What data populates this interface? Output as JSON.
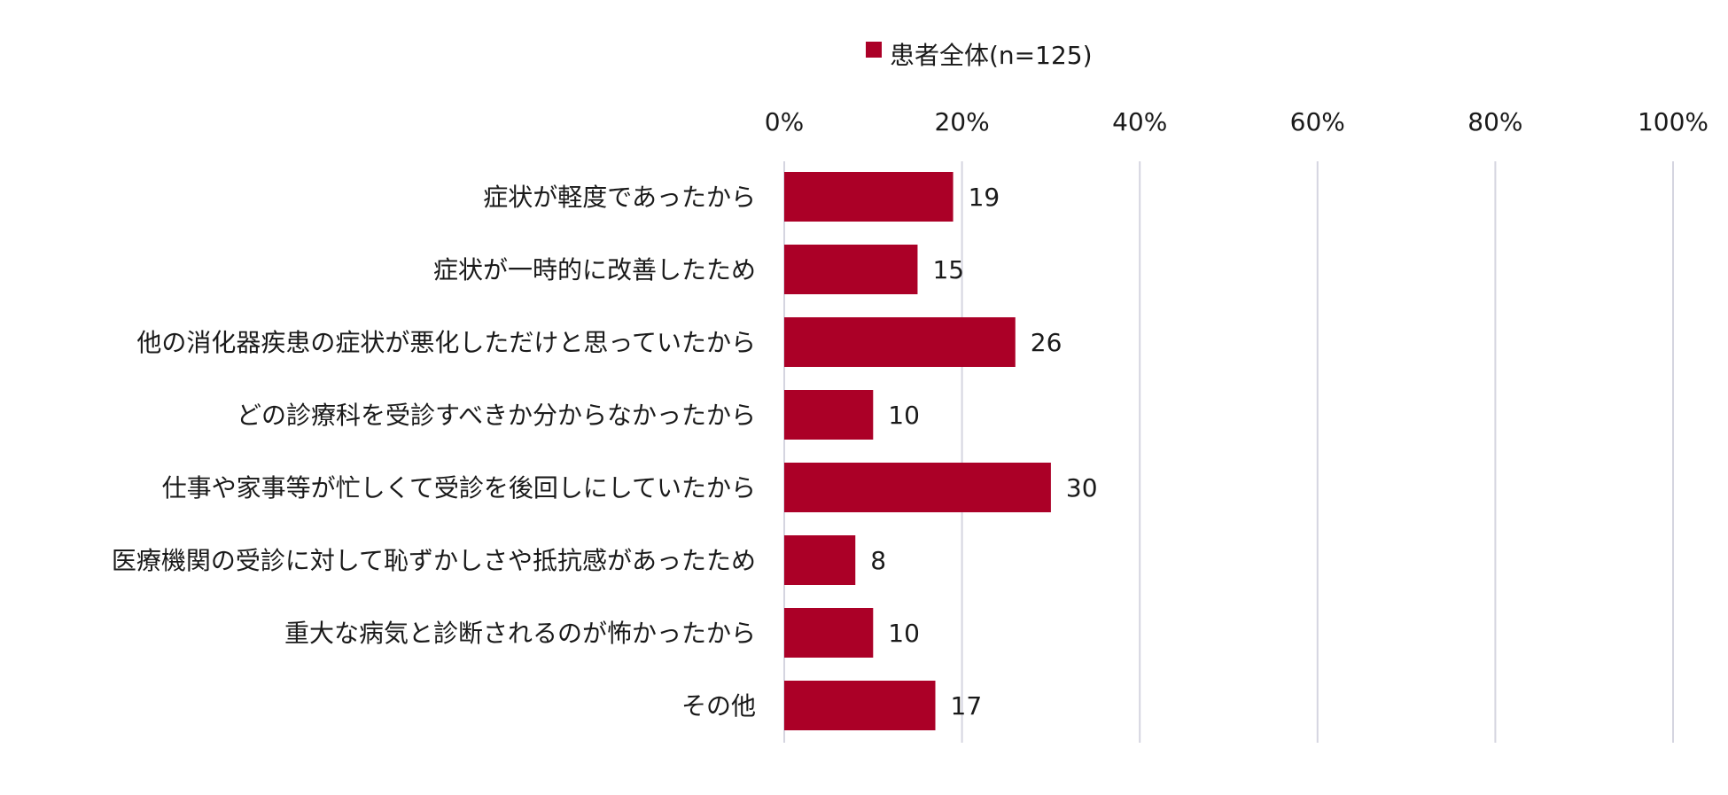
{
  "chart_data": {
    "type": "bar",
    "orientation": "horizontal",
    "categories": [
      "症状が軽度であったから",
      "症状が一時的に改善したため",
      "他の消化器疾患の症状が悪化しただけと思っていたから",
      "どの診療科を受診すべきか分からなかったから",
      "仕事や家事等が忙しくて受診を後回しにしていたから",
      "医療機関の受診に対して恥ずかしさや抵抗感があったため",
      "重大な病気と診断されるのが怖かったから",
      "その他"
    ],
    "series": [
      {
        "name": "患者全体(n=125)",
        "color": "#ab0027",
        "values": [
          19,
          15,
          26,
          10,
          30,
          8,
          10,
          17
        ]
      }
    ],
    "data_labels": [
      "19",
      "15",
      "26",
      "10",
      "30",
      "8",
      "10",
      "17"
    ],
    "xlim": [
      0,
      100
    ],
    "x_ticks": [
      0,
      20,
      40,
      60,
      80,
      100
    ],
    "x_tick_labels": [
      "0%",
      "20%",
      "40%",
      "60%",
      "80%",
      "100%"
    ],
    "x_axis_position": "top",
    "grid": true,
    "legend_position": "top-center"
  }
}
